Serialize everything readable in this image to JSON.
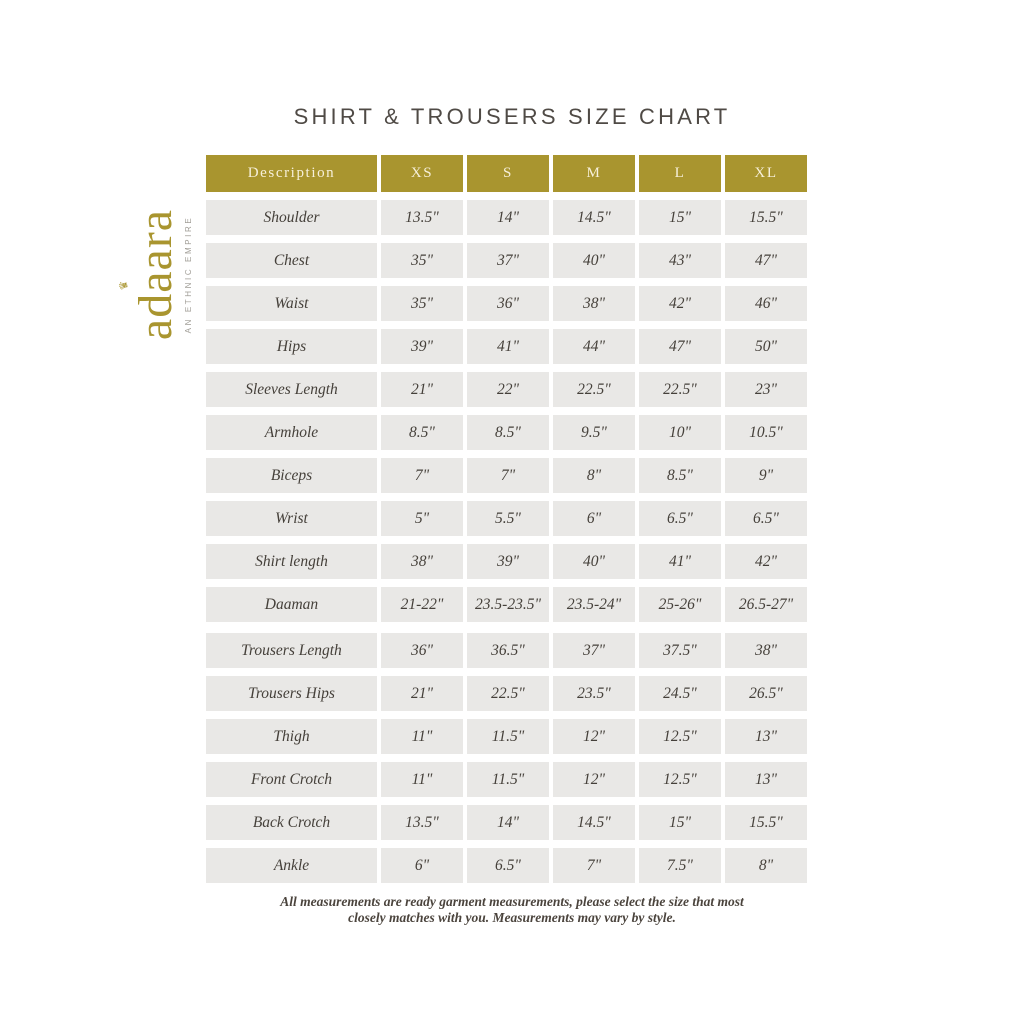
{
  "title": "SHIRT & TROUSERS SIZE CHART",
  "brand": {
    "name_pre": "ad",
    "name_crowned_letter": "a",
    "crown_icon": "♛",
    "name_post": "ara",
    "tagline": "AN ETHNIC EMPIRE"
  },
  "footer": {
    "line1": "All measurements are ready garment measurements, please select the size that most",
    "line2": "closely matches with you. Measurements may vary by style."
  },
  "colors": {
    "brand_gold": "#a9952f",
    "header_text_cream": "#f7f0da",
    "row_bg_gray": "#e9e8e6",
    "text_dark": "#4b443d"
  },
  "chart_data": {
    "type": "table",
    "title": "SHIRT & TROUSERS SIZE CHART",
    "columns": [
      "Description",
      "XS",
      "S",
      "M",
      "L",
      "XL"
    ],
    "rows": [
      {
        "label": "Shoulder",
        "values": [
          "13.5\"",
          "14\"",
          "14.5\"",
          "15\"",
          "15.5\""
        ]
      },
      {
        "label": "Chest",
        "values": [
          "35\"",
          "37\"",
          "40\"",
          "43\"",
          "47\""
        ]
      },
      {
        "label": "Waist",
        "values": [
          "35\"",
          "36\"",
          "38\"",
          "42\"",
          "46\""
        ]
      },
      {
        "label": "Hips",
        "values": [
          "39\"",
          "41\"",
          "44\"",
          "47\"",
          "50\""
        ]
      },
      {
        "label": "Sleeves Length",
        "values": [
          "21\"",
          "22\"",
          "22.5\"",
          "22.5\"",
          "23\""
        ]
      },
      {
        "label": "Armhole",
        "values": [
          "8.5\"",
          "8.5\"",
          "9.5\"",
          "10\"",
          "10.5\""
        ]
      },
      {
        "label": "Biceps",
        "values": [
          "7\"",
          "7\"",
          "8\"",
          "8.5\"",
          "9\""
        ]
      },
      {
        "label": "Wrist",
        "values": [
          "5\"",
          "5.5\"",
          "6\"",
          "6.5\"",
          "6.5\""
        ]
      },
      {
        "label": "Shirt length",
        "values": [
          "38\"",
          "39\"",
          "40\"",
          "41\"",
          "42\""
        ]
      },
      {
        "label": "Daaman",
        "values": [
          "21-22\"",
          "23.5-23.5\"",
          "23.5-24\"",
          "25-26\"",
          "26.5-27\""
        ]
      },
      {
        "label": "Trousers Length",
        "values": [
          "36\"",
          "36.5\"",
          "37\"",
          "37.5\"",
          "38\""
        ]
      },
      {
        "label": "Trousers Hips",
        "values": [
          "21\"",
          "22.5\"",
          "23.5\"",
          "24.5\"",
          "26.5\""
        ]
      },
      {
        "label": "Thigh",
        "values": [
          "11\"",
          "11.5\"",
          "12\"",
          "12.5\"",
          "13\""
        ]
      },
      {
        "label": "Front Crotch",
        "values": [
          "11\"",
          "11.5\"",
          "12\"",
          "12.5\"",
          "13\""
        ]
      },
      {
        "label": "Back Crotch",
        "values": [
          "13.5\"",
          "14\"",
          "14.5\"",
          "15\"",
          "15.5\""
        ]
      },
      {
        "label": "Ankle",
        "values": [
          "6\"",
          "6.5\"",
          "7\"",
          "7.5\"",
          "8\""
        ]
      }
    ]
  }
}
